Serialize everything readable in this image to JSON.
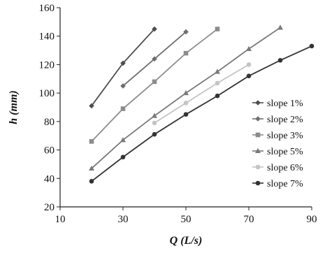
{
  "chart_data": {
    "type": "line",
    "xlabel": "Q (L/s)",
    "ylabel": "h (mm)",
    "xlim": [
      10,
      90
    ],
    "ylim": [
      20,
      160
    ],
    "xticks": [
      10,
      30,
      50,
      70,
      90
    ],
    "yticks": [
      20,
      40,
      60,
      80,
      100,
      120,
      140,
      160
    ],
    "grid": false,
    "legend_position": "right",
    "series": [
      {
        "name": "slope 1%",
        "color": "#4d4d4d",
        "marker": "diamond",
        "x": [
          20,
          30,
          40
        ],
        "y": [
          91,
          121,
          145
        ]
      },
      {
        "name": "slope 2%",
        "color": "#6e6e6e",
        "marker": "diamond",
        "x": [
          30,
          40,
          50
        ],
        "y": [
          105,
          124,
          143
        ]
      },
      {
        "name": "slope 3%",
        "color": "#8c8c8c",
        "marker": "square",
        "x": [
          20,
          30,
          40,
          50,
          60
        ],
        "y": [
          66,
          89,
          108,
          128,
          145
        ]
      },
      {
        "name": "slope 5%",
        "color": "#7a7a7a",
        "marker": "triangle",
        "x": [
          20,
          30,
          40,
          50,
          60,
          70,
          80
        ],
        "y": [
          47,
          67,
          84,
          100,
          115,
          131,
          146
        ]
      },
      {
        "name": "slope 6%",
        "color": "#c4c4c4",
        "marker": "circle",
        "x": [
          40,
          50,
          60,
          70
        ],
        "y": [
          79,
          93,
          107,
          120
        ]
      },
      {
        "name": "slope 7%",
        "color": "#333333",
        "marker": "circle",
        "x": [
          20,
          30,
          40,
          50,
          60,
          70,
          80,
          90
        ],
        "y": [
          38,
          55,
          71,
          85,
          98,
          112,
          123,
          133
        ]
      }
    ]
  }
}
